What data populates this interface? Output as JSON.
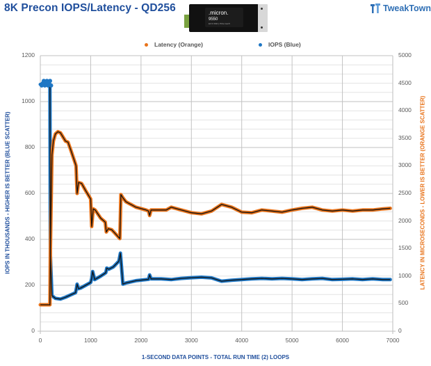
{
  "title": "8K Precon IOPS/Latency - QD256",
  "product_image": {
    "brand": ".micron.",
    "model": "9550",
    "subtitle": "E3.S SSD | PCIe Gen5"
  },
  "logo": {
    "text": "TweakTown"
  },
  "legend": [
    {
      "label": "Latency (Orange)",
      "color": "#e8731a"
    },
    {
      "label": "IOPS (Blue)",
      "color": "#1f77c4"
    }
  ],
  "axes": {
    "y_left_label": "IOPS IN THOUSANDS - HIGHER IS BETTER (BLUE SCATTER)",
    "y_right_label": "LATENCY IN MICROSECONDS - LOWER IS BETTER (ORANGE SCATTER)",
    "x_label": "1-SECOND  DATA POINTS - TOTAL RUN TIME (2) LOOPS",
    "x_ticks": [
      "0",
      "1000",
      "2000",
      "3000",
      "4000",
      "5000",
      "6000",
      "7000"
    ],
    "y_left_ticks": [
      "0",
      "200",
      "400",
      "600",
      "800",
      "1000",
      "1200"
    ],
    "y_right_ticks": [
      "0",
      "500",
      "1000",
      "1500",
      "2000",
      "2500",
      "3000",
      "3500",
      "4000",
      "4500",
      "5000"
    ]
  },
  "chart_data": {
    "type": "scatter",
    "title": "8K Precon IOPS/Latency - QD256",
    "xlabel": "1-SECOND  DATA POINTS - TOTAL RUN TIME (2) LOOPS",
    "ylabel": "IOPS IN THOUSANDS - HIGHER IS BETTER (BLUE SCATTER)",
    "ylabel_right": "LATENCY IN MICROSECONDS - LOWER IS BETTER (ORANGE SCATTER)",
    "xlim": [
      0,
      7000
    ],
    "ylim": [
      0,
      1200
    ],
    "ylim_right": [
      0,
      5000
    ],
    "grid": true,
    "legend_position": "top",
    "series": [
      {
        "name": "IOPS (Blue)",
        "axis": "left",
        "color": "#1f77c4",
        "x": [
          0,
          100,
          190,
          200,
          230,
          300,
          400,
          500,
          600,
          700,
          720,
          730,
          760,
          800,
          900,
          1000,
          1020,
          1040,
          1080,
          1200,
          1300,
          1320,
          1360,
          1450,
          1560,
          1590,
          1640,
          1700,
          1900,
          2100,
          2150,
          2170,
          2200,
          2400,
          2600,
          2800,
          3000,
          3200,
          3400,
          3600,
          3800,
          4000,
          4200,
          4400,
          4600,
          4800,
          5000,
          5200,
          5400,
          5600,
          5800,
          6000,
          6200,
          6400,
          6600,
          6800,
          6950
        ],
        "values": [
          1075,
          1078,
          1075,
          330,
          155,
          143,
          140,
          148,
          158,
          168,
          190,
          205,
          185,
          188,
          200,
          212,
          230,
          260,
          225,
          240,
          255,
          275,
          270,
          280,
          305,
          340,
          205,
          210,
          220,
          225,
          226,
          245,
          228,
          228,
          225,
          230,
          233,
          235,
          232,
          218,
          222,
          225,
          228,
          230,
          228,
          230,
          228,
          225,
          228,
          230,
          225,
          226,
          228,
          225,
          228,
          225,
          225
        ]
      },
      {
        "name": "Latency (Orange)",
        "axis": "right",
        "color": "#e8731a",
        "x": [
          0,
          100,
          190,
          200,
          230,
          260,
          300,
          350,
          400,
          500,
          550,
          600,
          700,
          710,
          730,
          760,
          820,
          900,
          1000,
          1020,
          1050,
          1090,
          1200,
          1290,
          1310,
          1350,
          1420,
          1500,
          1580,
          1600,
          1640,
          1700,
          1900,
          2100,
          2150,
          2170,
          2200,
          2400,
          2500,
          2600,
          2800,
          3000,
          3200,
          3400,
          3600,
          3800,
          4000,
          4200,
          4400,
          4600,
          4800,
          5000,
          5200,
          5400,
          5600,
          5800,
          6000,
          6200,
          6400,
          6600,
          6800,
          6950
        ],
        "values": [
          480,
          480,
          480,
          1500,
          3200,
          3450,
          3580,
          3620,
          3600,
          3450,
          3430,
          3300,
          3030,
          3000,
          2500,
          2700,
          2680,
          2550,
          2400,
          1900,
          2220,
          2200,
          2050,
          1980,
          1800,
          1860,
          1840,
          1760,
          1680,
          2480,
          2420,
          2350,
          2250,
          2200,
          2180,
          2100,
          2200,
          2200,
          2200,
          2250,
          2200,
          2150,
          2130,
          2180,
          2300,
          2250,
          2160,
          2150,
          2200,
          2180,
          2160,
          2200,
          2230,
          2250,
          2200,
          2180,
          2200,
          2180,
          2200,
          2200,
          2220,
          2230
        ]
      }
    ]
  }
}
